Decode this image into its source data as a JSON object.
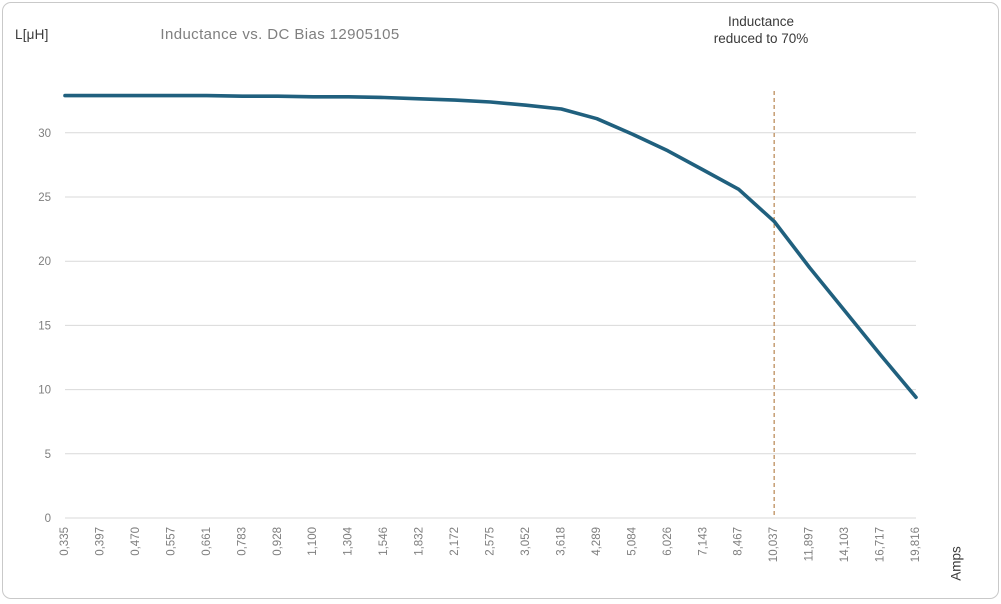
{
  "chart_data": {
    "type": "line",
    "title": "Inductance vs. DC Bias 12905105",
    "ylabel": "L[μH]",
    "xlabel": "Amps",
    "categories": [
      "0,335",
      "0,397",
      "0,470",
      "0,557",
      "0,661",
      "0,783",
      "0,928",
      "1,100",
      "1,304",
      "1,546",
      "1,832",
      "2,172",
      "2,575",
      "3,052",
      "3,618",
      "4,289",
      "5,084",
      "6,026",
      "7,143",
      "8,467",
      "10,037",
      "11,897",
      "14,103",
      "16,717",
      "19,816"
    ],
    "values": [
      32.9,
      32.9,
      32.9,
      32.9,
      32.9,
      32.85,
      32.85,
      32.8,
      32.8,
      32.75,
      32.65,
      32.55,
      32.4,
      32.15,
      31.85,
      31.1,
      29.9,
      28.6,
      27.1,
      25.6,
      23.1,
      19.5,
      16.1,
      12.7,
      9.4
    ],
    "yticks": [
      0,
      5,
      10,
      15,
      20,
      25,
      30
    ],
    "ylim": [
      0,
      35
    ],
    "grid": true,
    "legend_position": "none",
    "annotation": {
      "line1": "Inductance",
      "line2": "reduced to 70%"
    },
    "ref_line": {
      "category": "10,037",
      "style": "dashed",
      "color": "#bd8d5d"
    },
    "colors": {
      "curve": "#20607e",
      "grid": "#d9d9d9",
      "tick_text": "#7f7f7f",
      "title_text": "#7f7f7f",
      "label_text": "#3a3a3a",
      "border": "#c9c9c9"
    }
  }
}
